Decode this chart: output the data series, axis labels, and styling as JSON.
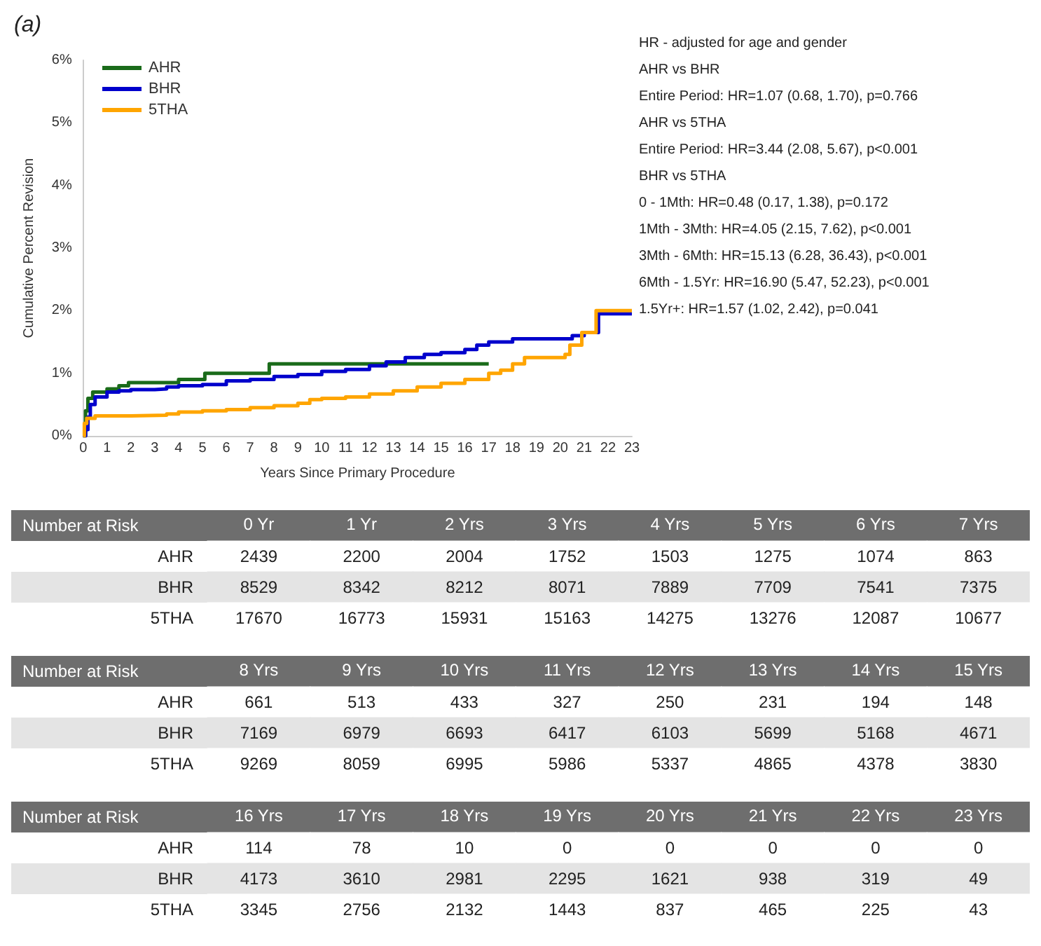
{
  "chart_data": [
    {
      "type": "step",
      "xlabel": "Years Since Primary Procedure",
      "ylabel": "Cumulative Percent Revision",
      "xlim": [
        0,
        23
      ],
      "xticks": [
        0,
        1,
        2,
        3,
        4,
        5,
        6,
        7,
        8,
        9,
        10,
        11,
        12,
        13,
        14,
        15,
        16,
        17,
        18,
        19,
        20,
        21,
        22,
        23
      ],
      "ylim": [
        0,
        6
      ],
      "yticks": [
        {
          "value": 0,
          "label": "0%"
        },
        {
          "value": 1,
          "label": "1%"
        },
        {
          "value": 2,
          "label": "2%"
        },
        {
          "value": 3,
          "label": "3%"
        },
        {
          "value": 4,
          "label": "4%"
        },
        {
          "value": 5,
          "label": "5%"
        },
        {
          "value": 6,
          "label": "6%"
        }
      ],
      "grid": false,
      "legend": "top left",
      "marker": "none",
      "line_style": "solid",
      "annotations": [
        "(a)",
        "HR - adjusted for age and gender",
        "AHR vs BHR",
        "Entire Period: HR=1.07 (0.68, 1.70), p=0.766",
        "AHR vs 5THA",
        "Entire Period: HR=3.44 (2.08, 5.67), p<0.001",
        "BHR vs 5THA",
        "0 - 1Mth: HR=0.48 (0.17, 1.38), p=0.172",
        "1Mth - 3Mth: HR=4.05 (2.15, 7.62), p<0.001",
        "3Mth - 6Mth: HR=15.13 (6.28, 36.43), p<0.001",
        "6Mth - 1.5Yr: HR=16.90 (5.47, 52.23), p<0.001",
        "1.5Yr+: HR=1.57 (1.02, 2.42), p=0.041"
      ],
      "series": [
        {
          "name": "AHR",
          "color": "#1a6b1a",
          "x": [
            0,
            0.1,
            0.2,
            0.4,
            1,
            1.5,
            1.9,
            4,
            5.1,
            7.8,
            17
          ],
          "values": [
            0,
            0.4,
            0.6,
            0.7,
            0.75,
            0.8,
            0.85,
            0.9,
            1.0,
            1.15,
            1.15
          ]
        },
        {
          "name": "BHR",
          "color": "#0000cc",
          "x": [
            0,
            0.1,
            0.2,
            0.3,
            0.5,
            1,
            1.5,
            2,
            3,
            3.5,
            4,
            5,
            6,
            7,
            8,
            9,
            10,
            11,
            12,
            12.7,
            13.5,
            14.3,
            15,
            16,
            16.5,
            17,
            18,
            20.5,
            21,
            21.6,
            23
          ],
          "values": [
            0,
            0.1,
            0.3,
            0.5,
            0.62,
            0.7,
            0.72,
            0.74,
            0.75,
            0.78,
            0.8,
            0.82,
            0.88,
            0.9,
            0.95,
            0.98,
            1.03,
            1.06,
            1.12,
            1.18,
            1.25,
            1.3,
            1.33,
            1.38,
            1.45,
            1.5,
            1.55,
            1.6,
            1.65,
            1.95,
            1.95
          ]
        },
        {
          "name": "5THA",
          "color": "#ffa500",
          "x": [
            0,
            0.05,
            0.15,
            0.5,
            2,
            3.5,
            4,
            5,
            6,
            7,
            8,
            9,
            9.5,
            10,
            11,
            12,
            13,
            14,
            15,
            16,
            17,
            17.5,
            18,
            18.5,
            20.2,
            20.4,
            20.9,
            21.5,
            23
          ],
          "values": [
            0,
            0.2,
            0.28,
            0.32,
            0.33,
            0.35,
            0.38,
            0.4,
            0.42,
            0.45,
            0.48,
            0.52,
            0.58,
            0.6,
            0.62,
            0.67,
            0.72,
            0.78,
            0.84,
            0.9,
            1.0,
            1.05,
            1.15,
            1.25,
            1.3,
            1.45,
            1.65,
            2.0,
            2.0
          ]
        }
      ]
    },
    {
      "type": "heatmap",
      "data_labels": true,
      "title": "Number at Risk",
      "categories": [
        "0 Yr",
        "1 Yr",
        "2 Yrs",
        "3 Yrs",
        "4 Yrs",
        "5 Yrs",
        "6 Yrs",
        "7 Yrs"
      ],
      "y_categories": [
        "AHR",
        "BHR",
        "5THA"
      ],
      "cells": [
        [
          2439,
          2200,
          2004,
          1752,
          1503,
          1275,
          1074,
          863
        ],
        [
          8529,
          8342,
          8212,
          8071,
          7889,
          7709,
          7541,
          7375
        ],
        [
          17670,
          16773,
          15931,
          15163,
          14275,
          13276,
          12087,
          10677
        ]
      ]
    },
    {
      "type": "heatmap",
      "data_labels": true,
      "title": "Number at Risk",
      "categories": [
        "8 Yrs",
        "9 Yrs",
        "10 Yrs",
        "11 Yrs",
        "12 Yrs",
        "13 Yrs",
        "14 Yrs",
        "15 Yrs"
      ],
      "y_categories": [
        "AHR",
        "BHR",
        "5THA"
      ],
      "cells": [
        [
          661,
          513,
          433,
          327,
          250,
          231,
          194,
          148
        ],
        [
          7169,
          6979,
          6693,
          6417,
          6103,
          5699,
          5168,
          4671
        ],
        [
          9269,
          8059,
          6995,
          5986,
          5337,
          4865,
          4378,
          3830
        ]
      ]
    },
    {
      "type": "heatmap",
      "data_labels": true,
      "title": "Number at Risk",
      "categories": [
        "16 Yrs",
        "17 Yrs",
        "18 Yrs",
        "19 Yrs",
        "20 Yrs",
        "21 Yrs",
        "22 Yrs",
        "23 Yrs"
      ],
      "y_categories": [
        "AHR",
        "BHR",
        "5THA"
      ],
      "cells": [
        [
          114,
          78,
          10,
          0,
          0,
          0,
          0,
          0
        ],
        [
          4173,
          3610,
          2981,
          2295,
          1621,
          938,
          319,
          49
        ],
        [
          3345,
          2756,
          2132,
          1443,
          837,
          465,
          225,
          43
        ]
      ]
    }
  ]
}
